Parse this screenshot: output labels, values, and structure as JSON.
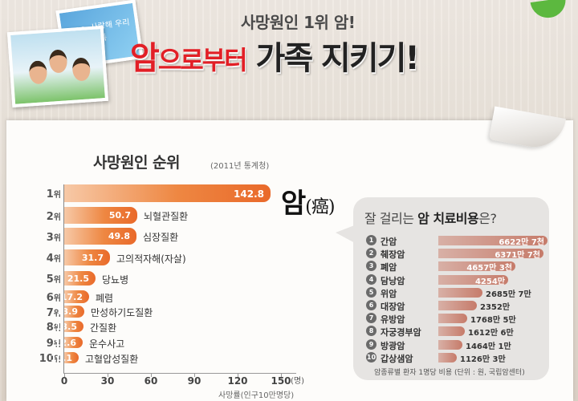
{
  "header": {
    "subtitle": "사망원인 1위 암!",
    "title_red": "암",
    "title_red2": "으로부터",
    "title_dark": "가족 지키기!",
    "photo_caption": "사랑해 우리가족"
  },
  "chart_data": [
    {
      "type": "bar",
      "orientation": "horizontal",
      "title": "사망원인 순위",
      "subtitle": "(2011년 통계청)",
      "xlabel": "사망률(인구10만명당)",
      "x_unit": "(명)",
      "xlim": [
        0,
        150
      ],
      "x_ticks": [
        "0",
        "30",
        "60",
        "90",
        "120",
        "150"
      ],
      "rank_suffix": "위",
      "rows": [
        {
          "rank": "1",
          "value": 142.8,
          "value_label": "142.8",
          "category": ""
        },
        {
          "rank": "2",
          "value": 50.7,
          "value_label": "50.7",
          "category": "뇌혈관질환"
        },
        {
          "rank": "3",
          "value": 49.8,
          "value_label": "49.8",
          "category": "심장질환"
        },
        {
          "rank": "4",
          "value": 31.7,
          "value_label": "31.7",
          "category": "고의적자해(자살)"
        },
        {
          "rank": "5",
          "value": 21.5,
          "value_label": "21.5",
          "category": "당뇨병"
        },
        {
          "rank": "6",
          "value": 17.2,
          "value_label": "17.2",
          "category": "폐렴"
        },
        {
          "rank": "7",
          "value": 13.9,
          "value_label": "13.9",
          "category": "만성하기도질환"
        },
        {
          "rank": "8",
          "value": 13.5,
          "value_label": "13.5",
          "category": "간질환"
        },
        {
          "rank": "9",
          "value": 12.6,
          "value_label": "12.6",
          "category": "운수사고"
        },
        {
          "rank": "10",
          "value": 10.1,
          "value_label": "10.1",
          "category": "고혈압성질환"
        }
      ],
      "top_label": {
        "text": "암",
        "hanja": "(癌)"
      },
      "bar_color": "#ee8742"
    },
    {
      "type": "bar",
      "orientation": "horizontal",
      "title_pre": "잘 걸리는 ",
      "title_bold": "암 치료비용",
      "title_post": "은?",
      "footnote": "암종류별 환자 1명당 비용 (단위 : 원, 국립암센터)",
      "unit": "원",
      "rows": [
        {
          "no": "1",
          "name": "간암",
          "value": 66227000,
          "label": "6622만 7천"
        },
        {
          "no": "2",
          "name": "췌장암",
          "value": 63717000,
          "label": "6371만 7천"
        },
        {
          "no": "3",
          "name": "폐암",
          "value": 46573000,
          "label": "4657만 3천"
        },
        {
          "no": "4",
          "name": "담낭암",
          "value": 42540000,
          "label": "4254만"
        },
        {
          "no": "5",
          "name": "위암",
          "value": 26857000,
          "label": "2685만 7만"
        },
        {
          "no": "6",
          "name": "대장암",
          "value": 23520000,
          "label": "2352만"
        },
        {
          "no": "7",
          "name": "유방암",
          "value": 17685000,
          "label": "1768만 5만"
        },
        {
          "no": "8",
          "name": "자궁경부암",
          "value": 16126000,
          "label": "1612만 6만"
        },
        {
          "no": "9",
          "name": "방광암",
          "value": 14641000,
          "label": "1464만 1만"
        },
        {
          "no": "10",
          "name": "갑상샘암",
          "value": 11263000,
          "label": "1126만 3만"
        }
      ],
      "bar_color": "#c67b6a"
    }
  ]
}
